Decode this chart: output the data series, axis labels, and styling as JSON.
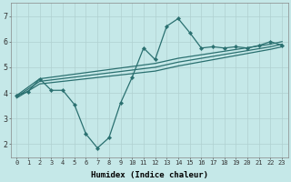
{
  "xlabel": "Humidex (Indice chaleur)",
  "xlim": [
    -0.5,
    23.5
  ],
  "ylim": [
    1.5,
    7.5
  ],
  "yticks": [
    2,
    3,
    4,
    5,
    6,
    7
  ],
  "xticks": [
    0,
    1,
    2,
    3,
    4,
    5,
    6,
    7,
    8,
    9,
    10,
    11,
    12,
    13,
    14,
    15,
    16,
    17,
    18,
    19,
    20,
    21,
    22,
    23
  ],
  "background_color": "#c5e8e8",
  "line_color": "#2a7070",
  "grid_color": "#b0d0d0",
  "series": {
    "volatile_x": [
      0,
      1,
      2,
      3,
      4,
      5,
      6,
      7,
      8,
      9,
      10,
      11,
      12,
      13,
      14,
      15,
      16,
      17,
      18,
      19,
      20,
      21,
      22,
      23
    ],
    "volatile_y": [
      3.9,
      4.05,
      4.55,
      4.1,
      4.1,
      3.55,
      2.4,
      1.85,
      2.25,
      3.6,
      4.6,
      5.75,
      5.3,
      6.6,
      6.9,
      6.35,
      5.75,
      5.8,
      5.75,
      5.8,
      5.75,
      5.85,
      6.0,
      5.85
    ],
    "trend1_x": [
      0,
      2,
      12,
      14,
      22,
      23
    ],
    "trend1_y": [
      3.9,
      4.55,
      5.15,
      5.35,
      5.9,
      6.0
    ],
    "trend2_x": [
      0,
      2,
      12,
      14,
      22,
      23
    ],
    "trend2_y": [
      3.85,
      4.45,
      5.0,
      5.2,
      5.8,
      5.9
    ],
    "trend3_x": [
      0,
      2,
      12,
      14,
      22,
      23
    ],
    "trend3_y": [
      3.8,
      4.35,
      4.85,
      5.05,
      5.7,
      5.8
    ]
  }
}
